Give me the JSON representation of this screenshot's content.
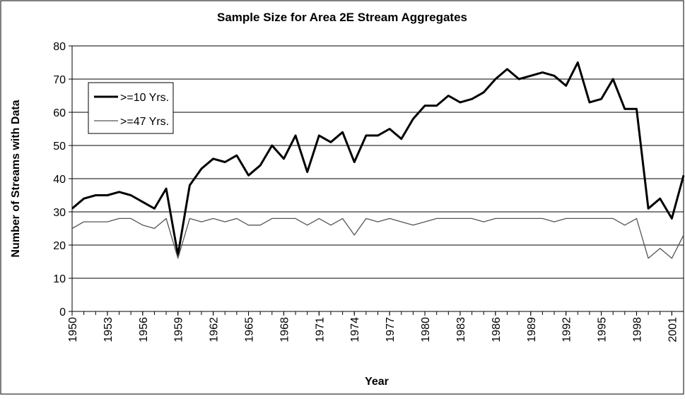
{
  "chart_data": {
    "type": "line",
    "title": "Sample Size for Area 2E Stream Aggregates",
    "x_label": "Year",
    "y_label": "Number of Streams with Data",
    "x": [
      1950,
      1951,
      1952,
      1953,
      1954,
      1955,
      1956,
      1957,
      1958,
      1959,
      1960,
      1961,
      1962,
      1963,
      1964,
      1965,
      1966,
      1967,
      1968,
      1969,
      1970,
      1971,
      1972,
      1973,
      1974,
      1975,
      1976,
      1977,
      1978,
      1979,
      1980,
      1981,
      1982,
      1983,
      1984,
      1985,
      1986,
      1987,
      1988,
      1989,
      1990,
      1991,
      1992,
      1993,
      1994,
      1995,
      1996,
      1997,
      1998,
      1999,
      2000,
      2001,
      2002
    ],
    "series": [
      {
        "name": ">=10 Yrs.",
        "color": "#000000",
        "width": 3,
        "values": [
          31,
          34,
          35,
          35,
          36,
          35,
          33,
          31,
          37,
          17,
          38,
          43,
          46,
          45,
          47,
          41,
          44,
          50,
          46,
          53,
          42,
          53,
          51,
          54,
          45,
          53,
          53,
          55,
          52,
          58,
          62,
          62,
          65,
          63,
          64,
          66,
          70,
          73,
          70,
          71,
          72,
          71,
          68,
          75,
          63,
          64,
          70,
          61,
          61,
          31,
          34,
          28,
          41
        ]
      },
      {
        "name": ">=47 Yrs.",
        "color": "#555555",
        "width": 1.3,
        "values": [
          25,
          27,
          27,
          27,
          28,
          28,
          26,
          25,
          28,
          16,
          28,
          27,
          28,
          27,
          28,
          26,
          26,
          28,
          28,
          28,
          26,
          28,
          26,
          28,
          23,
          28,
          27,
          28,
          27,
          26,
          27,
          28,
          28,
          28,
          28,
          27,
          28,
          28,
          28,
          28,
          28,
          27,
          28,
          28,
          28,
          28,
          28,
          26,
          28,
          16,
          19,
          16,
          23
        ]
      }
    ],
    "xlim": [
      1950,
      2002
    ],
    "xticks": [
      1950,
      1953,
      1956,
      1959,
      1962,
      1965,
      1968,
      1971,
      1974,
      1977,
      1980,
      1983,
      1986,
      1989,
      1992,
      1995,
      1998,
      2001
    ],
    "ylim": [
      0,
      80
    ],
    "yticks": [
      0,
      10,
      20,
      30,
      40,
      50,
      60,
      70,
      80
    ],
    "grid": true,
    "legend": "upper-left"
  }
}
